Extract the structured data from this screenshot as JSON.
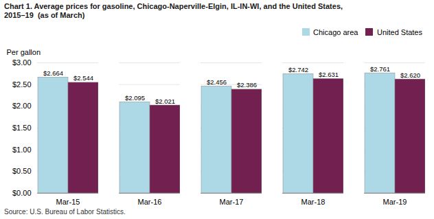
{
  "chart_data": {
    "type": "bar",
    "title": "Chart 1. Average prices for gasoline, Chicago-Naperville-Elgin, IL-IN-WI, and the United States,",
    "subtitle": "2015–19  (as of March)",
    "ylabel": "Per gallon",
    "source": "Source: U.S. Bureau of Labor Statistics.",
    "categories": [
      "Mar-15",
      "Mar-16",
      "Mar-17",
      "Mar-18",
      "Mar-19"
    ],
    "series": [
      {
        "name": "Chicago area",
        "color": "#ADD8E6",
        "values": [
          2.664,
          2.095,
          2.456,
          2.742,
          2.761
        ],
        "value_labels": [
          "$2.664",
          "$2.095",
          "$2.456",
          "$2.742",
          "$2.761"
        ]
      },
      {
        "name": "United States",
        "color": "#722050",
        "values": [
          2.544,
          2.021,
          2.386,
          2.631,
          2.62
        ],
        "value_labels": [
          "$2.544",
          "$2.021",
          "$2.386",
          "$2.631",
          "$2.620"
        ]
      }
    ],
    "ylim": [
      0.0,
      3.0
    ],
    "yticks": [
      {
        "value": 0.0,
        "label": "$0.00"
      },
      {
        "value": 0.5,
        "label": "$0.50"
      },
      {
        "value": 1.0,
        "label": "$1.00"
      },
      {
        "value": 1.5,
        "label": "$1.50"
      },
      {
        "value": 2.0,
        "label": "$2.00"
      },
      {
        "value": 2.5,
        "label": "$2.50"
      },
      {
        "value": 3.0,
        "label": "$3.00"
      }
    ],
    "grid": true,
    "legend": "upper right",
    "data_labels": true
  }
}
